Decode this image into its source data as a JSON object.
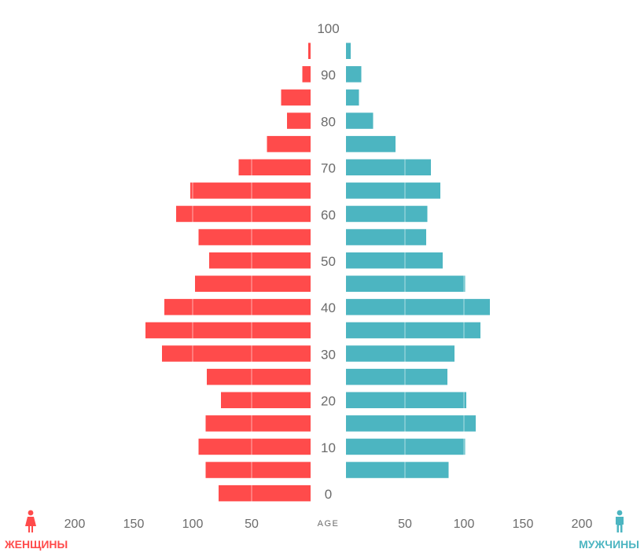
{
  "chart_data": {
    "type": "bar",
    "subtype": "population-pyramid",
    "center_axis_label": "AGE",
    "age_labels": [
      "100",
      "90",
      "80",
      "70",
      "60",
      "50",
      "40",
      "30",
      "20",
      "10",
      "0"
    ],
    "x_tick_labels": [
      "200",
      "150",
      "100",
      "50"
    ],
    "xlim": [
      0,
      200
    ],
    "grid": true,
    "colors": {
      "female": "#ff4b4b",
      "male": "#4cb5c1"
    },
    "age_groups": [
      95,
      90,
      85,
      80,
      75,
      70,
      65,
      60,
      55,
      50,
      45,
      40,
      35,
      30,
      25,
      20,
      15,
      10,
      5,
      0
    ],
    "series": [
      {
        "name": "ЖЕНЩИНЫ",
        "side": "left",
        "values": [
          2,
          7,
          25,
          20,
          37,
          61,
          102,
          114,
          95,
          86,
          98,
          124,
          140,
          126,
          88,
          76,
          89,
          95,
          89,
          78
        ]
      },
      {
        "name": "МУЖЧИНЫ",
        "side": "right",
        "values": [
          4,
          13,
          11,
          23,
          42,
          72,
          80,
          69,
          68,
          82,
          101,
          122,
          114,
          92,
          86,
          102,
          110,
          101,
          87,
          0
        ]
      }
    ]
  },
  "legend": {
    "female_label": "ЖЕНЩИНЫ",
    "male_label": "МУЖЧИНЫ"
  },
  "icons": {
    "female": "female-person-icon",
    "male": "male-person-icon"
  }
}
